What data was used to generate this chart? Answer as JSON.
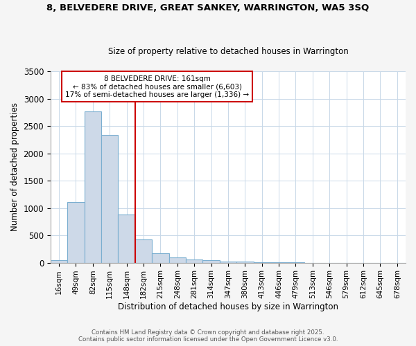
{
  "title1": "8, BELVEDERE DRIVE, GREAT SANKEY, WARRINGTON, WA5 3SQ",
  "title2": "Size of property relative to detached houses in Warrington",
  "xlabel": "Distribution of detached houses by size in Warrington",
  "ylabel": "Number of detached properties",
  "categories": [
    "16sqm",
    "49sqm",
    "82sqm",
    "115sqm",
    "148sqm",
    "182sqm",
    "215sqm",
    "248sqm",
    "281sqm",
    "314sqm",
    "347sqm",
    "380sqm",
    "413sqm",
    "446sqm",
    "479sqm",
    "513sqm",
    "546sqm",
    "579sqm",
    "612sqm",
    "645sqm",
    "678sqm"
  ],
  "values": [
    50,
    1110,
    2760,
    2340,
    875,
    425,
    175,
    90,
    60,
    40,
    25,
    20,
    5,
    5,
    2,
    1,
    1,
    0,
    0,
    0,
    0
  ],
  "bar_color": "#cdd9e8",
  "bar_edge_color": "#7aaed0",
  "vline_color": "#cc0000",
  "vline_pos": 4.5,
  "annotation_title": "8 BELVEDERE DRIVE: 161sqm",
  "annotation_line1": "← 83% of detached houses are smaller (6,603)",
  "annotation_line2": "17% of semi-detached houses are larger (1,336) →",
  "annotation_box_color": "#cc0000",
  "ylim": [
    0,
    3500
  ],
  "yticks": [
    0,
    500,
    1000,
    1500,
    2000,
    2500,
    3000,
    3500
  ],
  "footer1": "Contains HM Land Registry data © Crown copyright and database right 2025.",
  "footer2": "Contains public sector information licensed under the Open Government Licence v3.0.",
  "bg_color": "#f5f5f5",
  "plot_bg_color": "#ffffff",
  "grid_color": "#c8d8e8"
}
